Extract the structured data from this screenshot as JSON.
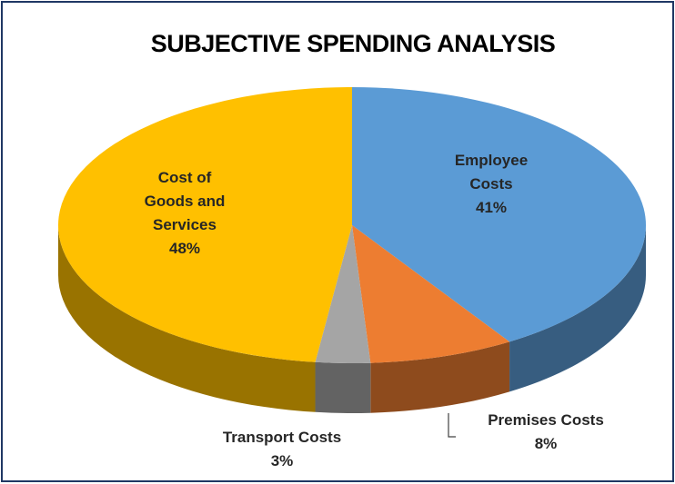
{
  "chart_data": {
    "type": "pie",
    "title": "SUBJECTIVE SPENDING ANALYSIS",
    "categories": [
      "Employee Costs",
      "Premises Costs",
      "Transport Costs",
      "Cost of Goods and Services"
    ],
    "values": [
      41,
      8,
      3,
      48
    ],
    "value_labels": [
      "41%",
      "8%",
      "3%",
      "48%"
    ],
    "colors": [
      "#5b9bd5",
      "#ed7d31",
      "#a5a5a5",
      "#ffc000"
    ]
  }
}
